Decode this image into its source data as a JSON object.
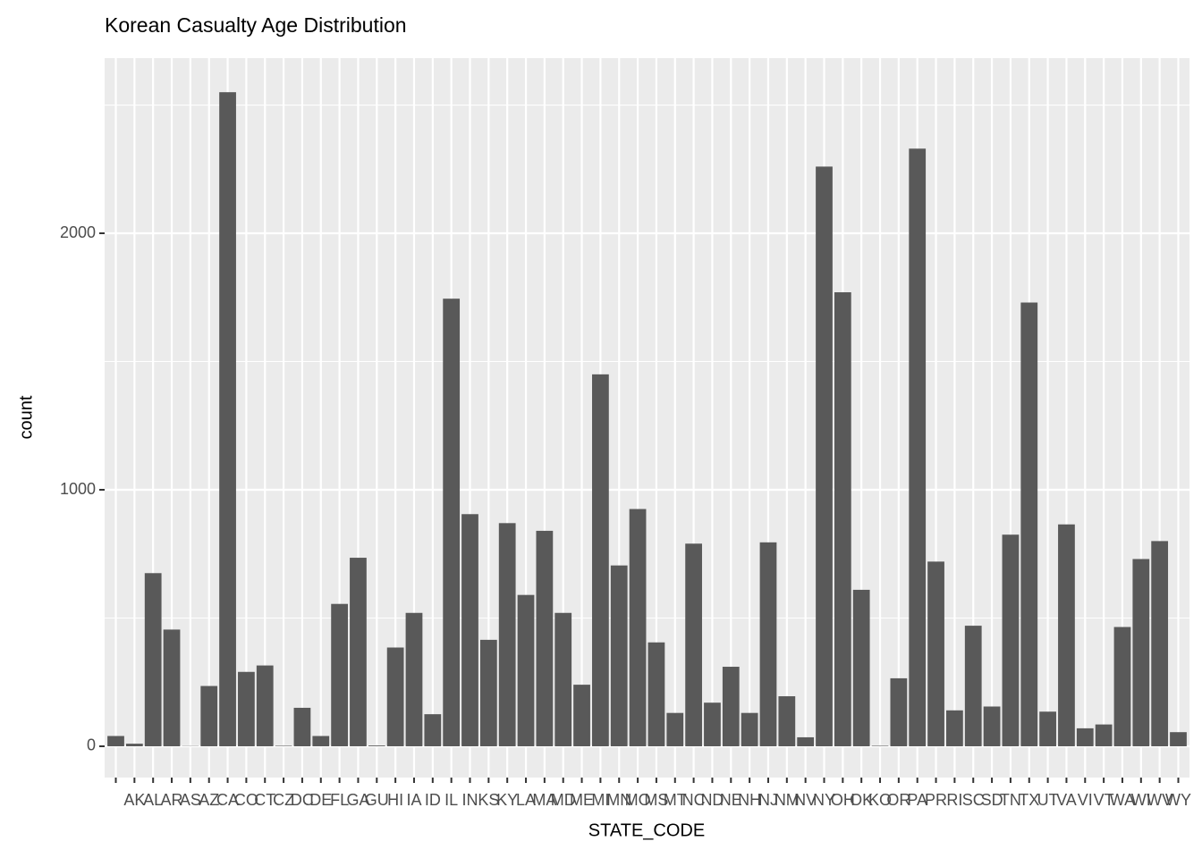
{
  "chart_data": {
    "type": "bar",
    "title": "Korean Casualty Age Distribution",
    "x_label": "STATE_CODE",
    "y_label": "count",
    "categories": [
      null,
      "AK",
      "AL",
      "AR",
      "AS",
      "AZ",
      "CA",
      "CO",
      "CT",
      "CZ",
      "DC",
      "DE",
      "FL",
      "GA",
      "GU",
      "HI",
      "IA",
      "ID",
      "IL",
      "IN",
      "KS",
      "KY",
      "LA",
      "MA",
      "MD",
      "ME",
      "MI",
      "MN",
      "MO",
      "MS",
      "MT",
      "NC",
      "ND",
      "NE",
      "NH",
      "NJ",
      "NM",
      "NV",
      "NY",
      "OH",
      "OK",
      "KO",
      "OR",
      "PA",
      "PR",
      "RI",
      "SC",
      "SD",
      "TN",
      "TX",
      "UT",
      "VA",
      "VI",
      "VT",
      "WA",
      "WI",
      "WV",
      "WY"
    ],
    "values": [
      40,
      10,
      675,
      455,
      1,
      235,
      2550,
      290,
      315,
      2,
      150,
      40,
      555,
      735,
      3,
      385,
      520,
      125,
      1745,
      905,
      415,
      870,
      590,
      840,
      520,
      240,
      1450,
      705,
      925,
      405,
      130,
      790,
      170,
      310,
      130,
      795,
      195,
      35,
      2260,
      1770,
      610,
      2,
      265,
      2330,
      720,
      140,
      470,
      155,
      825,
      1730,
      135,
      865,
      70,
      85,
      465,
      730,
      800,
      55
    ],
    "color": "#595959",
    "ylim": [
      -122,
      2683
    ],
    "yticks": [
      0,
      1000,
      2000
    ],
    "yminor": [
      500,
      1500,
      2500
    ],
    "grid": true
  }
}
